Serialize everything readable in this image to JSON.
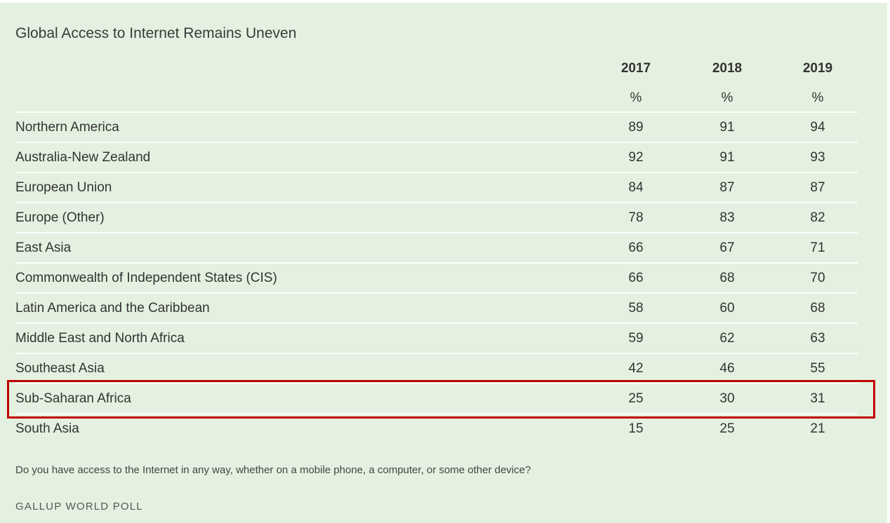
{
  "header": {
    "title": "Global Access to Internet Remains Uneven"
  },
  "table": {
    "columns": [
      2017,
      2018,
      2019
    ],
    "units": [
      "%",
      "%",
      "%"
    ],
    "rows": [
      {
        "label": "Northern America",
        "values": [
          89,
          91,
          94
        ]
      },
      {
        "label": "Australia-New Zealand",
        "values": [
          92,
          91,
          93
        ]
      },
      {
        "label": "European Union",
        "values": [
          84,
          87,
          87
        ]
      },
      {
        "label": "Europe (Other)",
        "values": [
          78,
          83,
          82
        ]
      },
      {
        "label": "East Asia",
        "values": [
          66,
          67,
          71
        ]
      },
      {
        "label": "Commonwealth of Independent States (CIS)",
        "values": [
          66,
          68,
          70
        ]
      },
      {
        "label": "Latin America and the Caribbean",
        "values": [
          58,
          60,
          68
        ]
      },
      {
        "label": "Middle East and North Africa",
        "values": [
          59,
          62,
          63
        ]
      },
      {
        "label": "Southeast Asia",
        "values": [
          42,
          46,
          55
        ]
      },
      {
        "label": "Sub-Saharan Africa",
        "values": [
          25,
          30,
          31
        ]
      },
      {
        "label": "South Asia",
        "values": [
          15,
          25,
          21
        ]
      }
    ]
  },
  "footer": {
    "question": "Do you have access to the Internet in any way, whether on a mobile phone, a computer, or some other device?",
    "source": "GALLUP WORLD POLL"
  }
}
